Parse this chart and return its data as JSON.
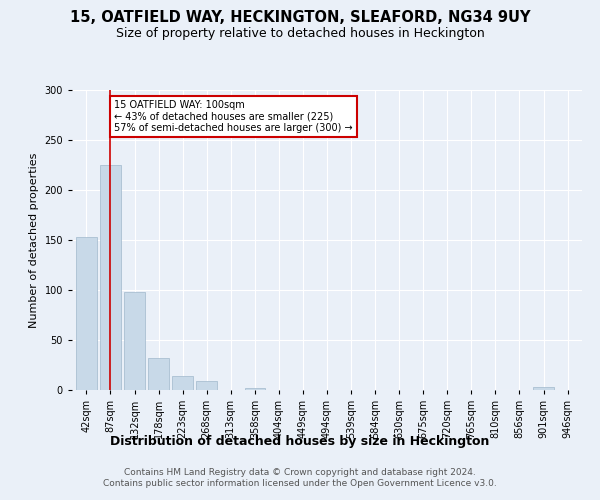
{
  "title": "15, OATFIELD WAY, HECKINGTON, SLEAFORD, NG34 9UY",
  "subtitle": "Size of property relative to detached houses in Heckington",
  "xlabel": "Distribution of detached houses by size in Heckington",
  "ylabel": "Number of detached properties",
  "categories": [
    "42sqm",
    "87sqm",
    "132sqm",
    "178sqm",
    "223sqm",
    "268sqm",
    "313sqm",
    "358sqm",
    "404sqm",
    "449sqm",
    "494sqm",
    "539sqm",
    "584sqm",
    "630sqm",
    "675sqm",
    "720sqm",
    "765sqm",
    "810sqm",
    "856sqm",
    "901sqm",
    "946sqm"
  ],
  "values": [
    153,
    225,
    98,
    32,
    14,
    9,
    0,
    2,
    0,
    0,
    0,
    0,
    0,
    0,
    0,
    0,
    0,
    0,
    0,
    3,
    0
  ],
  "bar_color": "#c8d9e8",
  "bar_edge_color": "#a0b8cc",
  "vline_x": 1,
  "vline_color": "#cc0000",
  "annotation_text": "15 OATFIELD WAY: 100sqm\n← 43% of detached houses are smaller (225)\n57% of semi-detached houses are larger (300) →",
  "annotation_box_color": "#ffffff",
  "annotation_box_edge": "#cc0000",
  "ylim": [
    0,
    300
  ],
  "yticks": [
    0,
    50,
    100,
    150,
    200,
    250,
    300
  ],
  "bg_color": "#eaf0f8",
  "plot_bg_color": "#eaf0f8",
  "grid_color": "#ffffff",
  "footer": "Contains HM Land Registry data © Crown copyright and database right 2024.\nContains public sector information licensed under the Open Government Licence v3.0.",
  "title_fontsize": 10.5,
  "subtitle_fontsize": 9,
  "xlabel_fontsize": 9,
  "ylabel_fontsize": 8,
  "tick_fontsize": 7,
  "footer_fontsize": 6.5
}
